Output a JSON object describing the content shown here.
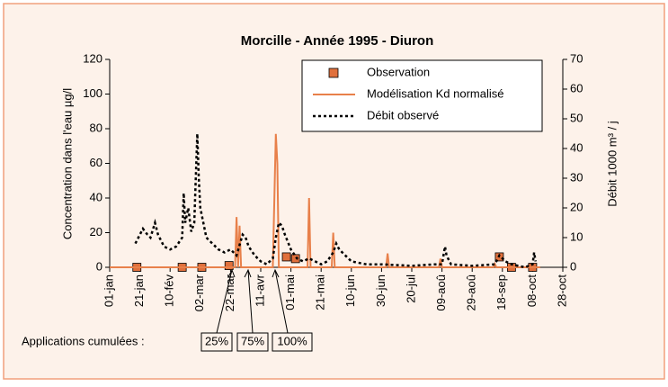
{
  "chart_data": {
    "type": "line",
    "title": "Morcille - Année 1995 - Diuron",
    "y_label": "Concentration dans l'eau µg/l",
    "y2_label": "Débit 1000 m³ / j",
    "xlim": [
      0,
      300
    ],
    "xticks": [
      {
        "value": 0,
        "label": "01-jan"
      },
      {
        "value": 20,
        "label": "21-jan"
      },
      {
        "value": 40,
        "label": "10-fév"
      },
      {
        "value": 60,
        "label": "02-mar"
      },
      {
        "value": 80,
        "label": "22-mar"
      },
      {
        "value": 100,
        "label": "11-avr"
      },
      {
        "value": 120,
        "label": "01-mai"
      },
      {
        "value": 140,
        "label": "21-mai"
      },
      {
        "value": 160,
        "label": "10-jun"
      },
      {
        "value": 180,
        "label": "30-jun"
      },
      {
        "value": 200,
        "label": "20-jul"
      },
      {
        "value": 220,
        "label": "09-aoû"
      },
      {
        "value": 240,
        "label": "29-aoû"
      },
      {
        "value": 260,
        "label": "18-sep"
      },
      {
        "value": 280,
        "label": "08-oct"
      },
      {
        "value": 300,
        "label": "28-oct"
      }
    ],
    "ylim": [
      0,
      120
    ],
    "yticks": [
      0,
      20,
      40,
      60,
      80,
      100,
      120
    ],
    "y2lim": [
      0,
      70
    ],
    "y2ticks": [
      0,
      10,
      20,
      30,
      40,
      50,
      60,
      70
    ],
    "series": [
      {
        "name": "Observation",
        "mark": "scatter",
        "color": "#e0703c",
        "x": [
          18,
          48,
          61,
          79,
          117,
          123,
          258,
          266,
          280
        ],
        "values": [
          0,
          0,
          0,
          1,
          6,
          5,
          6,
          0,
          0
        ]
      },
      {
        "name": "Modélisation Kd normalisé",
        "mark": "line",
        "color": "#e8804a",
        "x": [
          0,
          83,
          84,
          85,
          86,
          87,
          108,
          110,
          111,
          112,
          131,
          132,
          133,
          147,
          148,
          149,
          183,
          184,
          185,
          218,
          219,
          220,
          254,
          255,
          256,
          285
        ],
        "values": [
          0,
          0,
          29,
          0,
          24,
          0,
          0,
          77,
          60,
          0,
          0,
          40,
          0,
          0,
          20,
          0,
          0,
          8,
          0,
          0,
          5,
          0,
          0,
          2,
          0,
          0
        ]
      },
      {
        "name": "Débit observé",
        "mark": "line",
        "dash": true,
        "color": "#000000",
        "axis": "y2",
        "x": [
          17,
          19,
          22,
          25,
          27,
          30,
          32,
          36,
          40,
          44,
          48,
          49,
          50,
          52,
          54,
          56,
          58,
          59,
          60,
          62,
          64,
          68,
          72,
          76,
          80,
          82,
          84,
          88,
          90,
          92,
          96,
          100,
          104,
          108,
          110,
          112,
          114,
          116,
          120,
          124,
          128,
          132,
          136,
          140,
          144,
          148,
          150,
          152,
          156,
          160,
          170,
          180,
          200,
          215,
          220,
          222,
          223,
          226,
          240,
          255,
          258,
          262,
          266,
          275,
          280,
          281,
          282
        ],
        "values": [
          8,
          10,
          13,
          11,
          10,
          15,
          11,
          7,
          6,
          7,
          10,
          25,
          15,
          20,
          12,
          15,
          45,
          30,
          20,
          15,
          10,
          8,
          6,
          5,
          6,
          5,
          4,
          11,
          10,
          7,
          4,
          2,
          1,
          3,
          10,
          15,
          14,
          11,
          6,
          3,
          2,
          3,
          2,
          1,
          2,
          5,
          8,
          6,
          4,
          2,
          1,
          1,
          0.5,
          1,
          1,
          7,
          4,
          1,
          0.5,
          1,
          4,
          2,
          1,
          0,
          1,
          5,
          2
        ]
      }
    ],
    "annotations": [
      "Applications cumulées :",
      "25%",
      "75%",
      "100%"
    ]
  }
}
